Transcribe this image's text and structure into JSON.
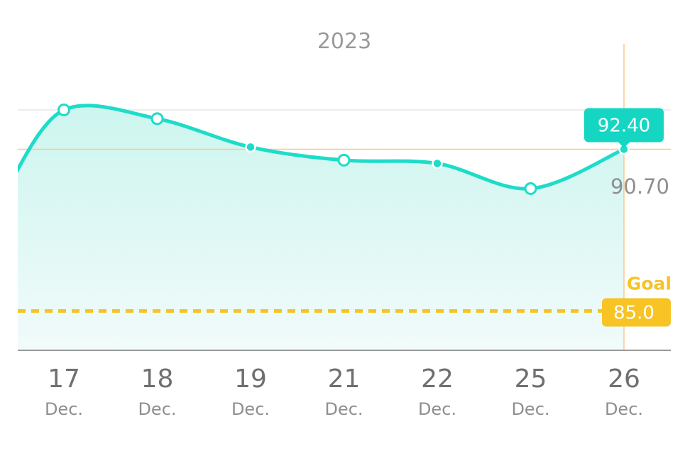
{
  "chart_data": {
    "type": "area",
    "title": "2023",
    "categories": [
      {
        "day": "17",
        "month": "Dec."
      },
      {
        "day": "18",
        "month": "Dec."
      },
      {
        "day": "19",
        "month": "Dec."
      },
      {
        "day": "21",
        "month": "Dec."
      },
      {
        "day": "22",
        "month": "Dec."
      },
      {
        "day": "25",
        "month": "Dec."
      },
      {
        "day": "26",
        "month": "Dec."
      }
    ],
    "values": [
      94.2,
      93.8,
      92.5,
      91.9,
      91.75,
      90.6,
      92.4
    ],
    "ylim": [
      83.2,
      94.2
    ],
    "selected": {
      "index": 6,
      "label": "92.40"
    },
    "reference": {
      "value": 90.7,
      "label": "90.70"
    },
    "goal": {
      "value": 85.0,
      "title": "Goal",
      "label": "85.0"
    },
    "colors": {
      "line": "#1ddcc8",
      "area_top": "#cdf5ef",
      "area_bottom": "#f1fbfa",
      "goal": "#f7c325",
      "crosshair": "#f8c98f",
      "tooltip": "#14d6c3"
    }
  }
}
